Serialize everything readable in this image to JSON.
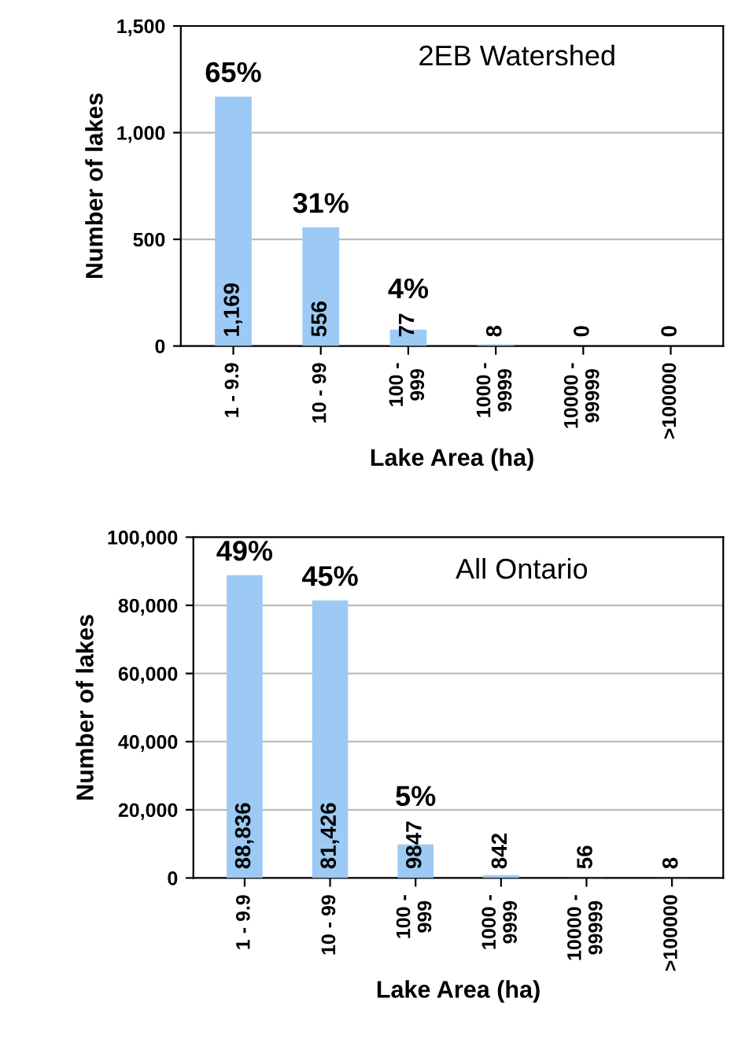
{
  "chart_data": [
    {
      "type": "bar",
      "title": "2EB Watershed",
      "xlabel": "Lake Area (ha)",
      "ylabel": "Number of lakes",
      "categories": [
        "1 - 9.9",
        "10 - 99",
        "100 -\n999",
        "1000 -\n9999",
        "10000 -\n99999",
        ">100000"
      ],
      "values": [
        1169,
        556,
        77,
        8,
        0,
        0
      ],
      "value_labels": [
        "1,169",
        "556",
        "77",
        "8",
        "0",
        "0"
      ],
      "color": "#9ccaf4",
      "ylim": [
        0,
        1500
      ],
      "yticks": [
        0,
        {
          "value": 500,
          "label": "500"
        },
        {
          "value": 1000,
          "label": "1,000"
        },
        {
          "value": 1500,
          "label": "1,500"
        }
      ],
      "grid": "y",
      "annotations": [
        {
          "text": "65%",
          "x": "1 - 9.9",
          "y": 1169
        },
        {
          "text": "31%",
          "x": "10 - 99",
          "y": 556
        },
        {
          "text": "4%",
          "x": "100 -\n999",
          "y": 77
        }
      ]
    },
    {
      "type": "bar",
      "title": "All Ontario",
      "xlabel": "Lake Area (ha)",
      "ylabel": "Number of lakes",
      "categories": [
        "1 - 9.9",
        "10 - 99",
        "100 -\n999",
        "1000 -\n9999",
        "10000 -\n99999",
        ">100000"
      ],
      "values": [
        88836,
        81426,
        9847,
        842,
        56,
        8
      ],
      "value_labels": [
        "88,836",
        "81,426",
        "9847",
        "842",
        "56",
        "8"
      ],
      "color": "#9ccaf4",
      "ylim": [
        0,
        100000
      ],
      "yticks": [
        0,
        {
          "value": 20000,
          "label": "20,000"
        },
        {
          "value": 40000,
          "label": "40,000"
        },
        {
          "value": 60000,
          "label": "60,000"
        },
        {
          "value": 80000,
          "label": "80,000"
        },
        {
          "value": 100000,
          "label": "100,000"
        }
      ],
      "grid": "y",
      "annotations": [
        {
          "text": "49%",
          "x": "1 - 9.9",
          "y": 88836
        },
        {
          "text": "45%",
          "x": "10 - 99",
          "y": 81426
        },
        {
          "text": "5%",
          "x": "100 -\n999",
          "y": 9847
        }
      ]
    }
  ]
}
